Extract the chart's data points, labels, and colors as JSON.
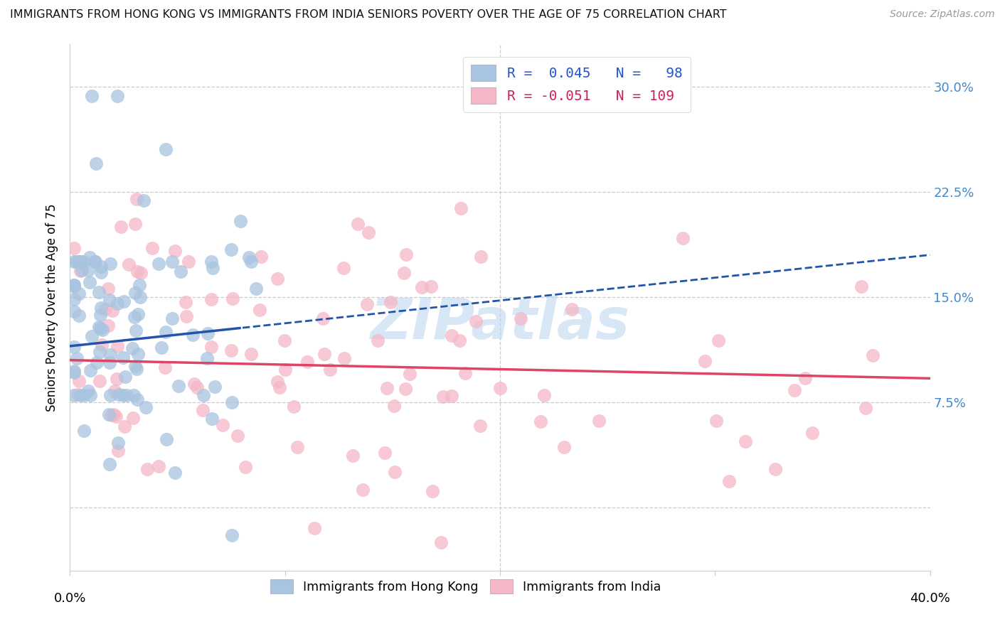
{
  "title": "IMMIGRANTS FROM HONG KONG VS IMMIGRANTS FROM INDIA SENIORS POVERTY OVER THE AGE OF 75 CORRELATION CHART",
  "source": "Source: ZipAtlas.com",
  "ylabel": "Seniors Poverty Over the Age of 75",
  "ytick_labels": [
    "",
    "7.5%",
    "15.0%",
    "22.5%",
    "30.0%"
  ],
  "ytick_values": [
    0.0,
    0.075,
    0.15,
    0.225,
    0.3
  ],
  "xlim": [
    0.0,
    0.4
  ],
  "ylim": [
    -0.045,
    0.33
  ],
  "hk_R": 0.045,
  "hk_N": 98,
  "india_R": -0.051,
  "india_N": 109,
  "hk_color": "#a8c4e0",
  "india_color": "#f4b8c8",
  "hk_line_color": "#2255aa",
  "india_line_color": "#dd4466",
  "watermark": "ZIPatlas",
  "background_color": "#ffffff",
  "grid_color": "#cccccc",
  "title_fontsize": 11.5
}
